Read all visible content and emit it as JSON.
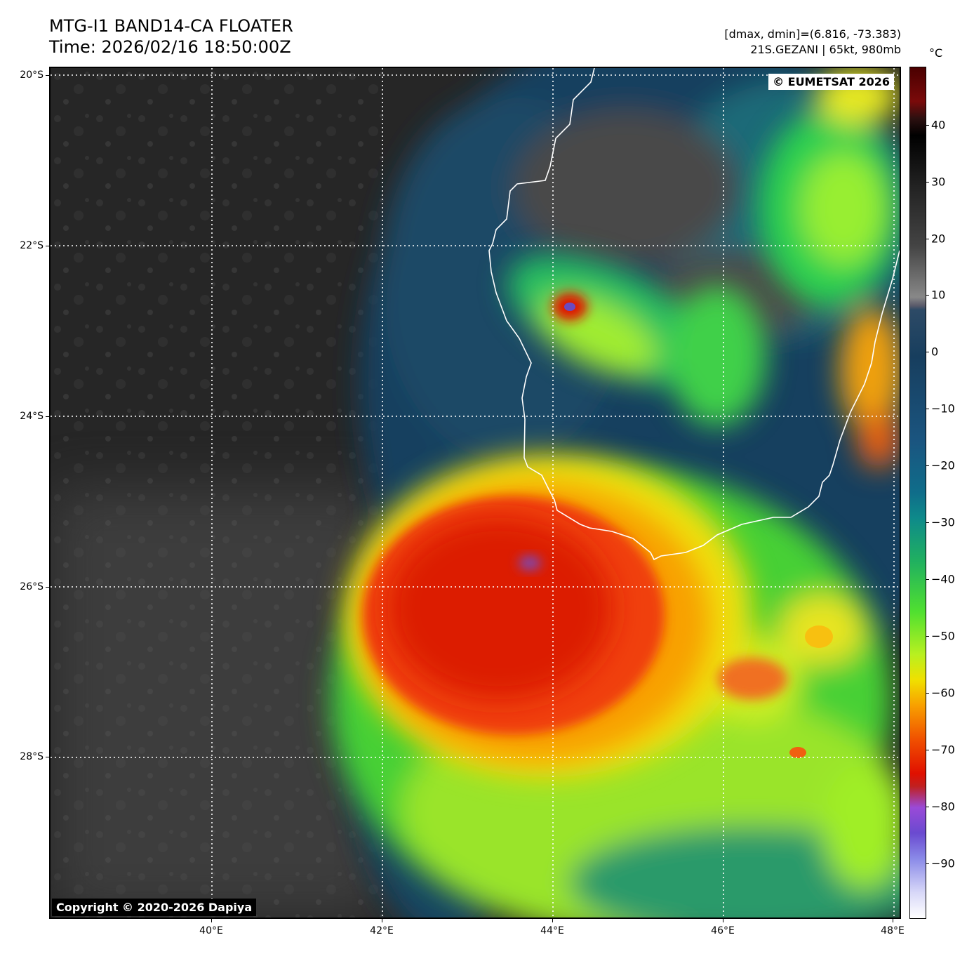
{
  "title": {
    "line1": "MTG-I1 BAND14-CA FLOATER",
    "line2": "Time: 2026/02/16 18:50:00Z"
  },
  "meta": {
    "line1": "[dmax, dmin]=(6.816, -73.383)",
    "line2": "21S.GEZANI | 65kt, 980mb"
  },
  "map": {
    "lat_labels": [
      "20°S",
      "22°S",
      "24°S",
      "26°S",
      "28°S"
    ],
    "lon_labels": [
      "40°E",
      "42°E",
      "44°E",
      "46°E",
      "48°E"
    ],
    "eumetsat_badge": "© EUMETSAT 2026",
    "copyright": "Copyright © 2020-2026 Dapiya"
  },
  "colorbar": {
    "unit": "°C",
    "labels": [
      "40",
      "30",
      "20",
      "10",
      "0",
      "−10",
      "−20",
      "−30",
      "−40",
      "−50",
      "−60",
      "−70",
      "−80",
      "−90"
    ]
  }
}
